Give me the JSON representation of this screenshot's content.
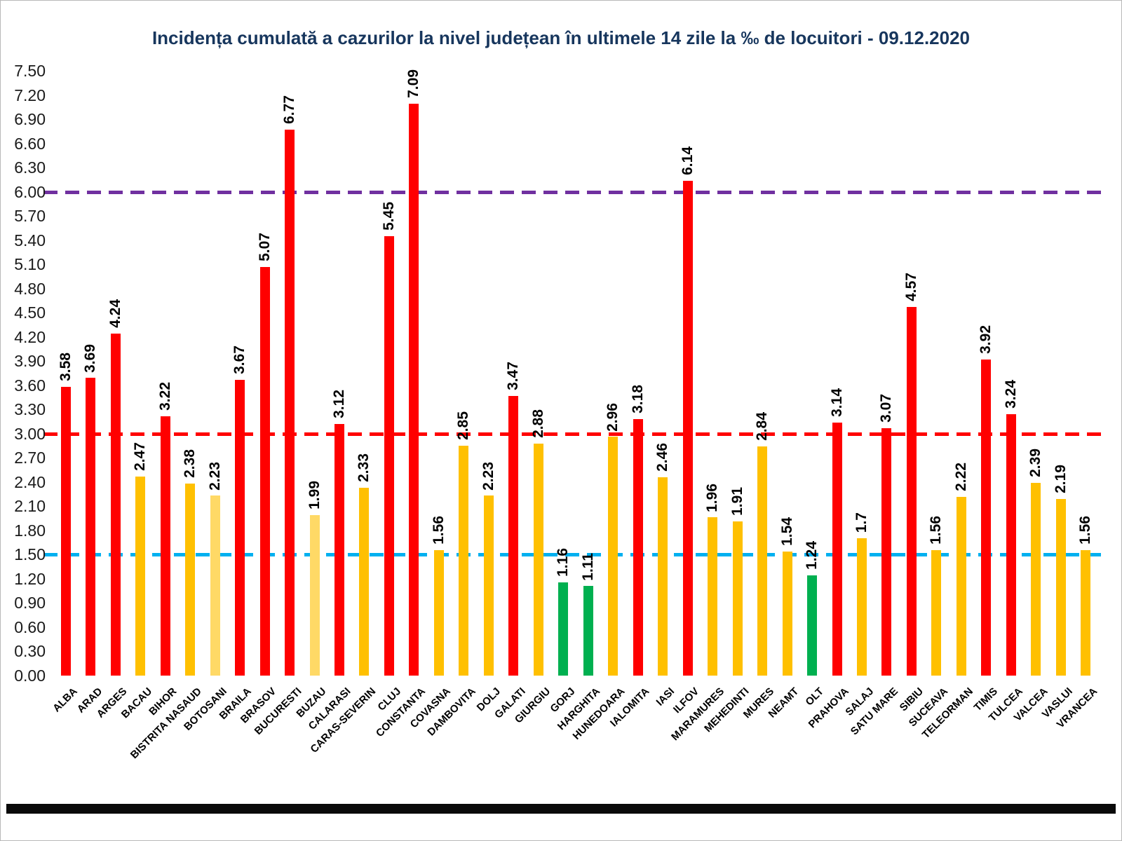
{
  "chart_data": {
    "type": "bar",
    "title": "Incidența cumulată a cazurilor la nivel județean în ultimele 14 zile la ‰ de locuitori - 09.12.2020",
    "xlabel": "",
    "ylabel": "",
    "ylim": [
      0,
      7.5
    ],
    "ytick_step": 0.3,
    "grid": false,
    "legend": false,
    "yticks": [
      "0.00",
      "0.30",
      "0.60",
      "0.90",
      "1.20",
      "1.50",
      "1.80",
      "2.10",
      "2.40",
      "2.70",
      "3.00",
      "3.30",
      "3.60",
      "3.90",
      "4.20",
      "4.50",
      "4.80",
      "5.10",
      "5.40",
      "5.70",
      "6.00",
      "6.30",
      "6.60",
      "6.90",
      "7.20",
      "7.50"
    ],
    "categories": [
      "ALBA",
      "ARAD",
      "ARGES",
      "BACAU",
      "BIHOR",
      "BISTRITA NASAUD",
      "BOTOSANI",
      "BRAILA",
      "BRASOV",
      "BUCURESTI",
      "BUZAU",
      "CALARASI",
      "CARAS-SEVERIN",
      "CLUJ",
      "CONSTANTA",
      "COVASNA",
      "DAMBOVITA",
      "DOLJ",
      "GALATI",
      "GIURGIU",
      "GORJ",
      "HARGHITA",
      "HUNEDOARA",
      "IALOMITA",
      "IASI",
      "ILFOV",
      "MARAMURES",
      "MEHEDINTI",
      "MURES",
      "NEAMT",
      "OLT",
      "PRAHOVA",
      "SALAJ",
      "SATU MARE",
      "SIBIU",
      "SUCEAVA",
      "TELEORMAN",
      "TIMIS",
      "TULCEA",
      "VALCEA",
      "VASLUI",
      "VRANCEA"
    ],
    "values": [
      3.58,
      3.69,
      4.24,
      2.47,
      3.22,
      2.38,
      2.23,
      3.67,
      5.07,
      6.77,
      1.99,
      3.12,
      2.33,
      5.45,
      7.09,
      1.56,
      2.85,
      2.23,
      3.47,
      2.88,
      1.16,
      1.11,
      2.96,
      3.18,
      2.46,
      6.14,
      1.96,
      1.91,
      2.84,
      1.54,
      1.24,
      3.14,
      1.7,
      3.07,
      4.57,
      1.56,
      2.22,
      3.92,
      3.24,
      2.39,
      2.19,
      1.56
    ],
    "value_labels": [
      "3.58",
      "3.69",
      "4.24",
      "2.47",
      "3.22",
      "2.38",
      "2.23",
      "3.67",
      "5.07",
      "6.77",
      "1.99",
      "3.12",
      "2.33",
      "5.45",
      "7.09",
      "1.56",
      "2.85",
      "2.23",
      "3.47",
      "2.88",
      "1.16",
      "1.11",
      "2.96",
      "3.18",
      "2.46",
      "6.14",
      "1.96",
      "1.91",
      "2.84",
      "1.54",
      "1.24",
      "3.14",
      "1.7",
      "3.07",
      "4.57",
      "1.56",
      "2.22",
      "3.92",
      "3.24",
      "2.39",
      "2.19",
      "1.56"
    ],
    "bar_colors": [
      "#ff0000",
      "#ff0000",
      "#ff0000",
      "#ffc000",
      "#ff0000",
      "#ffc000",
      "#ffd966",
      "#ff0000",
      "#ff0000",
      "#ff0000",
      "#ffd966",
      "#ff0000",
      "#ffc000",
      "#ff0000",
      "#ff0000",
      "#ffc000",
      "#ffc000",
      "#ffc000",
      "#ff0000",
      "#ffc000",
      "#00b050",
      "#00b050",
      "#ffc000",
      "#ff0000",
      "#ffc000",
      "#ff0000",
      "#ffc000",
      "#ffc000",
      "#ffc000",
      "#ffc000",
      "#00b050",
      "#ff0000",
      "#ffc000",
      "#ff0000",
      "#ff0000",
      "#ffc000",
      "#ffc000",
      "#ff0000",
      "#ff0000",
      "#ffc000",
      "#ffc000",
      "#ffc000"
    ],
    "colors": {
      "high_red": "#ff0000",
      "mid_yellow": "#ffc000",
      "mid_light_yellow": "#ffd966",
      "low_green": "#00b050"
    },
    "reference_lines": [
      {
        "value": 6.0,
        "color": "#7030a0",
        "style": "dashed"
      },
      {
        "value": 3.0,
        "color": "#ff0000",
        "style": "dashed"
      },
      {
        "value": 1.5,
        "color": "#00b0f0",
        "style": "dashed"
      }
    ]
  }
}
